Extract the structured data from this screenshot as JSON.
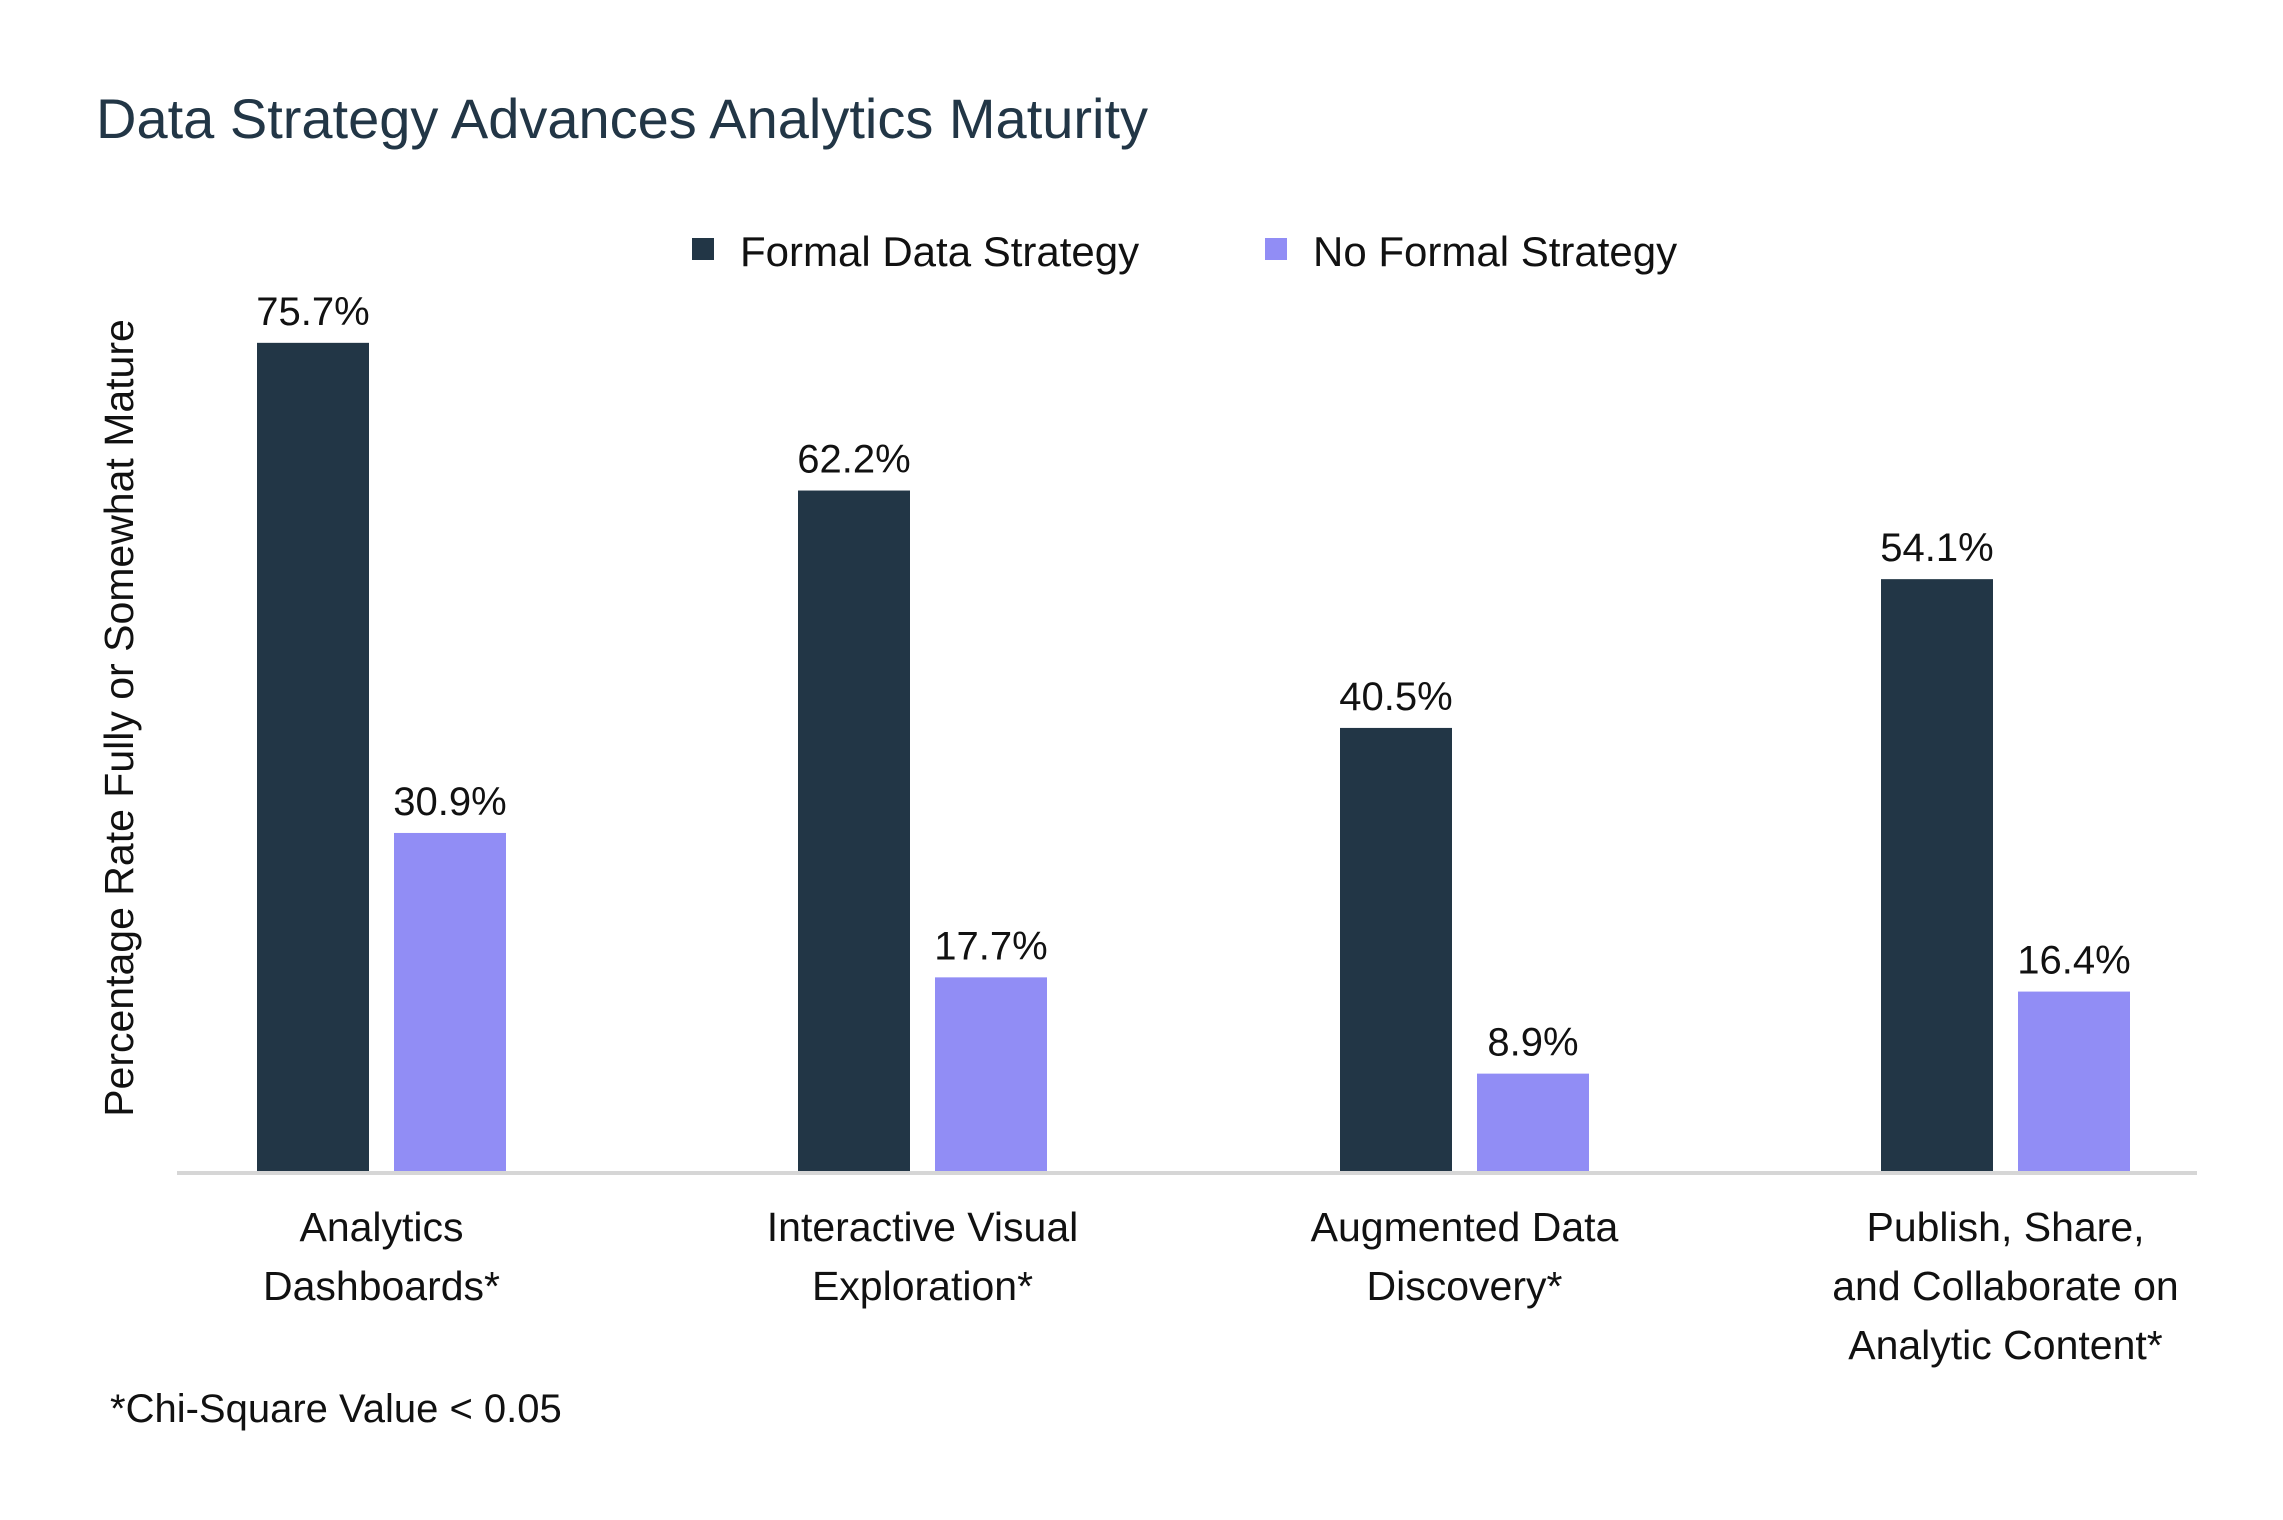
{
  "chart_data": {
    "type": "bar",
    "title": "Data Strategy Advances Analytics Maturity",
    "ylabel": "Percentage Rate Fully or Somewhat Mature",
    "xlabel": "",
    "ylim": [
      0,
      80
    ],
    "grid": false,
    "legend_position": "top-center",
    "categories": [
      [
        "Analytics",
        "Dashboards*"
      ],
      [
        "Interactive Visual",
        "Exploration*"
      ],
      [
        "Augmented Data",
        "Discovery*"
      ],
      [
        "Publish, Share,",
        "and Collaborate on",
        "Analytic Content*"
      ]
    ],
    "series": [
      {
        "name": "Formal Data Strategy",
        "color": "#223646",
        "values": [
          75.7,
          62.2,
          40.5,
          54.1
        ],
        "labels": [
          "75.7%",
          "62.2%",
          "40.5%",
          "54.1%"
        ]
      },
      {
        "name": "No Formal Strategy",
        "color": "#918df5",
        "values": [
          30.9,
          17.7,
          8.9,
          16.4
        ],
        "labels": [
          "30.9%",
          "17.7%",
          "8.9%",
          "16.4%"
        ]
      }
    ],
    "footnote": "*Chi-Square Value < 0.05"
  }
}
